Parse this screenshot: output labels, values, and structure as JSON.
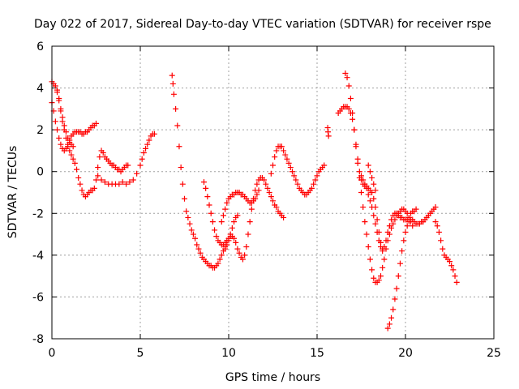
{
  "chart_data": {
    "type": "scatter",
    "title": "Day 022 of 2017, Sidereal Day-to-day VTEC variation (SDTVAR) for receiver rspe",
    "xlabel": "GPS time / hours",
    "ylabel": "SDTVAR / TECUs",
    "xlim": [
      0,
      25
    ],
    "ylim": [
      -8,
      6
    ],
    "x_ticks": [
      0,
      5,
      10,
      15,
      20,
      25
    ],
    "y_ticks": [
      -8,
      -6,
      -4,
      -2,
      0,
      2,
      4,
      6
    ],
    "grid": true,
    "marker": "plus",
    "marker_color": "#ff0000",
    "series": [
      {
        "x": [
          0.0,
          0.1,
          0.2,
          0.3,
          0.4,
          0.5,
          0.6,
          0.7,
          0.8,
          0.9,
          1.0,
          1.1,
          1.2,
          1.3,
          1.4,
          1.5,
          1.6,
          1.7,
          1.8,
          1.9,
          2.0,
          2.1,
          2.2,
          2.3,
          2.4,
          2.5,
          2.6,
          2.7,
          2.8,
          2.9,
          3.0,
          3.1,
          3.2,
          3.3,
          3.4,
          3.5,
          3.6,
          3.7,
          3.8,
          3.9,
          4.0,
          4.1,
          4.2,
          4.3
        ],
        "y": [
          4.3,
          4.2,
          4.1,
          3.8,
          3.4,
          2.9,
          2.4,
          2.0,
          1.6,
          1.2,
          1.0,
          0.8,
          0.6,
          0.4,
          0.1,
          -0.3,
          -0.6,
          -0.9,
          -1.1,
          -1.2,
          -1.1,
          -1.0,
          -0.9,
          -0.9,
          -0.8,
          -0.4,
          0.2,
          0.7,
          1.0,
          0.9,
          0.7,
          0.6,
          0.5,
          0.4,
          0.3,
          0.3,
          0.2,
          0.1,
          0.1,
          0.0,
          0.1,
          0.2,
          0.3,
          0.3
        ]
      },
      {
        "x": [
          0.0,
          0.1,
          0.2,
          0.3,
          0.4,
          0.5,
          0.6,
          0.7,
          0.8,
          0.9,
          1.0,
          1.1,
          1.2,
          1.3,
          1.4,
          1.5,
          1.6,
          1.7,
          1.8,
          1.9,
          2.0,
          2.1,
          2.2,
          2.3,
          2.4,
          2.5
        ],
        "y": [
          3.3,
          2.9,
          2.4,
          2.0,
          1.6,
          1.3,
          1.1,
          1.0,
          1.1,
          1.3,
          1.5,
          1.7,
          1.8,
          1.9,
          1.9,
          1.9,
          1.9,
          1.8,
          1.8,
          1.9,
          1.9,
          2.0,
          2.1,
          2.2,
          2.2,
          2.3
        ]
      },
      {
        "x": [
          0.3,
          0.4,
          0.5,
          0.6,
          0.7,
          0.8,
          0.9,
          1.0,
          1.1,
          1.2
        ],
        "y": [
          3.9,
          3.5,
          3.0,
          2.6,
          2.2,
          1.9,
          1.6,
          1.4,
          1.3,
          1.2
        ]
      },
      {
        "x": [
          2.6,
          2.8,
          3.0,
          3.2,
          3.4,
          3.6,
          3.8,
          4.0,
          4.2,
          4.4,
          4.6,
          4.8,
          5.0,
          5.1,
          5.2,
          5.3,
          5.4,
          5.5,
          5.6,
          5.7,
          5.8
        ],
        "y": [
          -0.2,
          -0.4,
          -0.5,
          -0.6,
          -0.6,
          -0.6,
          -0.6,
          -0.5,
          -0.6,
          -0.5,
          -0.4,
          -0.1,
          0.3,
          0.6,
          0.9,
          1.1,
          1.3,
          1.5,
          1.7,
          1.8,
          1.8
        ]
      },
      {
        "x": [
          6.8,
          6.85,
          6.9,
          7.0,
          7.1,
          7.2,
          7.3,
          7.4,
          7.5,
          7.6,
          7.7,
          7.8,
          7.9,
          8.0,
          8.1,
          8.2,
          8.3,
          8.4,
          8.5,
          8.6,
          8.7,
          8.8,
          8.9,
          9.0,
          9.1,
          9.2,
          9.3,
          9.4,
          9.5,
          9.6,
          9.7,
          9.8
        ],
        "y": [
          4.6,
          4.2,
          3.7,
          3.0,
          2.2,
          1.2,
          0.2,
          -0.6,
          -1.3,
          -1.9,
          -2.2,
          -2.5,
          -2.8,
          -3.0,
          -3.2,
          -3.5,
          -3.7,
          -3.9,
          -4.1,
          -4.2,
          -4.3,
          -4.4,
          -4.5,
          -4.5,
          -4.6,
          -4.6,
          -4.5,
          -4.4,
          -4.2,
          -4.0,
          -3.8,
          -3.6
        ]
      },
      {
        "x": [
          8.6,
          8.7,
          8.8,
          8.9,
          9.0,
          9.1,
          9.2,
          9.3,
          9.4,
          9.5,
          9.6,
          9.7,
          9.8,
          9.9,
          10.0,
          10.1,
          10.2,
          10.3,
          10.4,
          10.5,
          10.6,
          10.7,
          10.8,
          10.9,
          11.0,
          11.1,
          11.2,
          11.3,
          11.4,
          11.5,
          11.6,
          11.7,
          11.8,
          11.9,
          12.0,
          12.1,
          12.2,
          12.3,
          12.4,
          12.5,
          12.6,
          12.7,
          12.8,
          12.9,
          13.0,
          13.1
        ],
        "y": [
          -0.5,
          -0.8,
          -1.2,
          -1.6,
          -2.0,
          -2.4,
          -2.8,
          -3.1,
          -3.3,
          -3.4,
          -3.5,
          -3.5,
          -3.4,
          -3.3,
          -3.2,
          -3.1,
          -3.1,
          -3.2,
          -3.4,
          -3.7,
          -3.9,
          -4.1,
          -4.2,
          -4.0,
          -3.6,
          -3.0,
          -2.4,
          -1.8,
          -1.3,
          -0.9,
          -0.6,
          -0.4,
          -0.3,
          -0.3,
          -0.4,
          -0.6,
          -0.8,
          -1.0,
          -1.2,
          -1.4,
          -1.6,
          -1.7,
          -1.9,
          -2.0,
          -2.1,
          -2.2
        ]
      },
      {
        "x": [
          9.6,
          9.7,
          9.8,
          9.9,
          10.0,
          10.1,
          10.2,
          10.3,
          10.4,
          10.5,
          10.6,
          10.7,
          10.8,
          10.9,
          11.0,
          11.1,
          11.2,
          11.3,
          11.4,
          11.5,
          11.6,
          11.7
        ],
        "y": [
          -2.4,
          -2.1,
          -1.8,
          -1.5,
          -1.3,
          -1.2,
          -1.1,
          -1.1,
          -1.0,
          -1.0,
          -1.0,
          -1.1,
          -1.1,
          -1.2,
          -1.3,
          -1.4,
          -1.5,
          -1.5,
          -1.4,
          -1.3,
          -1.1,
          -0.9
        ]
      },
      {
        "x": [
          9.8,
          9.9,
          10.0,
          10.1,
          10.2,
          10.3,
          10.4,
          10.5
        ],
        "y": [
          -3.7,
          -3.5,
          -3.3,
          -3.0,
          -2.7,
          -2.4,
          -2.2,
          -2.1
        ]
      },
      {
        "x": [
          12.4,
          12.5,
          12.6,
          12.7,
          12.8,
          12.9,
          13.0,
          13.1,
          13.2,
          13.3,
          13.4,
          13.5,
          13.6,
          13.7,
          13.8,
          13.9,
          14.0,
          14.1,
          14.2,
          14.3,
          14.4,
          14.5,
          14.6,
          14.7,
          14.8,
          14.9,
          15.0,
          15.1,
          15.2,
          15.3,
          15.4
        ],
        "y": [
          -0.1,
          0.3,
          0.7,
          1.0,
          1.2,
          1.2,
          1.2,
          1.0,
          0.8,
          0.6,
          0.4,
          0.2,
          0.0,
          -0.2,
          -0.4,
          -0.6,
          -0.8,
          -0.9,
          -1.0,
          -1.1,
          -1.1,
          -1.0,
          -0.9,
          -0.8,
          -0.6,
          -0.4,
          -0.2,
          0.0,
          0.1,
          0.2,
          0.3
        ]
      },
      {
        "x": [
          15.6,
          15.62,
          15.65
        ],
        "y": [
          2.1,
          1.9,
          1.7
        ]
      },
      {
        "x": [
          16.2,
          16.3,
          16.4,
          16.5,
          16.6,
          16.7,
          16.8,
          16.9,
          17.0,
          17.1,
          17.2,
          17.3,
          17.4,
          17.5,
          17.6,
          17.7,
          17.8,
          17.9,
          18.0,
          18.1,
          18.2,
          18.3,
          18.4,
          18.5,
          18.6,
          18.7,
          18.8,
          18.9,
          19.0,
          19.1,
          19.2,
          19.3,
          19.4,
          19.5,
          19.6,
          19.7,
          19.8,
          19.9,
          20.0,
          20.1,
          20.2,
          20.3,
          20.4,
          20.5,
          20.6
        ],
        "y": [
          2.8,
          2.9,
          3.0,
          3.1,
          3.1,
          3.1,
          3.0,
          2.8,
          2.5,
          2.0,
          1.3,
          0.6,
          0.0,
          -0.4,
          -0.6,
          -0.7,
          -0.7,
          -0.8,
          -0.9,
          -1.0,
          -1.3,
          -1.7,
          -2.3,
          -2.9,
          -3.4,
          -3.7,
          -3.6,
          -3.3,
          -2.9,
          -2.6,
          -2.3,
          -2.1,
          -2.0,
          -2.0,
          -2.1,
          -2.2,
          -2.2,
          -2.3,
          -2.3,
          -2.3,
          -2.2,
          -2.0,
          -1.9,
          -1.9,
          -1.8
        ]
      },
      {
        "x": [
          16.6,
          16.7,
          16.8,
          16.9,
          17.0,
          17.1,
          17.2,
          17.3,
          17.4,
          17.5,
          17.6,
          17.7,
          17.8,
          17.9,
          18.0,
          18.1,
          18.2,
          18.3,
          18.4,
          18.5,
          18.6,
          18.7,
          18.8,
          18.9,
          19.0,
          19.1,
          19.2,
          19.3,
          19.4,
          19.5,
          19.6,
          19.7,
          19.8,
          19.9,
          20.0,
          20.1,
          20.2,
          20.3,
          20.4
        ],
        "y": [
          4.7,
          4.5,
          4.1,
          3.5,
          2.8,
          2.0,
          1.2,
          0.4,
          -0.3,
          -1.0,
          -1.7,
          -2.4,
          -3.0,
          -3.6,
          -4.2,
          -4.7,
          -5.1,
          -5.3,
          -5.3,
          -5.2,
          -5.0,
          -4.6,
          -4.2,
          -3.7,
          -3.3,
          -3.0,
          -2.7,
          -2.5,
          -2.3,
          -2.1,
          -2.0,
          -1.9,
          -1.8,
          -1.8,
          -1.9,
          -2.0,
          -2.2,
          -2.4,
          -2.6
        ]
      },
      {
        "x": [
          17.5,
          17.6,
          17.7,
          17.8,
          17.9,
          18.0,
          18.1,
          18.2,
          18.3,
          18.4,
          18.5,
          18.6,
          18.7
        ],
        "y": [
          -0.2,
          -0.4,
          -0.6,
          -0.8,
          -1.1,
          -1.4,
          -1.7,
          -2.1,
          -2.5,
          -2.9,
          -3.3,
          -3.6,
          -3.8
        ]
      },
      {
        "x": [
          17.9,
          18.0,
          18.1,
          18.2,
          18.3
        ],
        "y": [
          0.3,
          0.0,
          -0.3,
          -0.6,
          -0.9
        ]
      },
      {
        "x": [
          19.0,
          19.1,
          19.2,
          19.3,
          19.4,
          19.5,
          19.6,
          19.7,
          19.8,
          19.9,
          20.0,
          20.1,
          20.2,
          20.3,
          20.4,
          20.5,
          20.6,
          20.7,
          20.8,
          20.9,
          21.0,
          21.1,
          21.2,
          21.3,
          21.4,
          21.5,
          21.6,
          21.7
        ],
        "y": [
          -7.5,
          -7.3,
          -7.0,
          -6.6,
          -6.1,
          -5.6,
          -5.0,
          -4.4,
          -3.8,
          -3.3,
          -2.9,
          -2.6,
          -2.4,
          -2.3,
          -2.3,
          -2.4,
          -2.5,
          -2.5,
          -2.5,
          -2.4,
          -2.4,
          -2.3,
          -2.2,
          -2.1,
          -2.0,
          -1.9,
          -1.8,
          -1.7
        ]
      },
      {
        "x": [
          21.7,
          21.8,
          21.9,
          22.0,
          22.1,
          22.2,
          22.3,
          22.4,
          22.5,
          22.6,
          22.7,
          22.8,
          22.9
        ],
        "y": [
          -2.4,
          -2.6,
          -2.9,
          -3.3,
          -3.7,
          -4.0,
          -4.1,
          -4.2,
          -4.3,
          -4.5,
          -4.7,
          -5.0,
          -5.3
        ]
      }
    ]
  }
}
